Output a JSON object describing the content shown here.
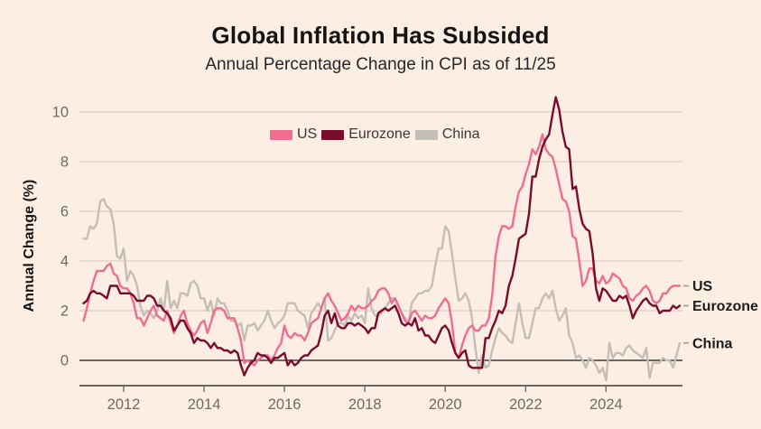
{
  "chart_data": {
    "type": "line",
    "title": "Global Inflation Has Subsided",
    "subtitle": "Annual Percentage Change in CPI as of 11/25",
    "ylabel": "Annual Change (%)",
    "x_start": "2011-01",
    "x_end": "2025-11",
    "frequency": "monthly",
    "xticks": [
      2012,
      2014,
      2016,
      2018,
      2020,
      2022,
      2024
    ],
    "yticks": [
      0,
      2,
      4,
      6,
      8,
      10
    ],
    "ylim": [
      -1.0,
      10.8
    ],
    "grid": "horizontal",
    "legend_position": "inside-top-center",
    "background_color": "#fdeee3",
    "gridline_color": "#cfc8c0",
    "zeroline_color": "#3e3a36",
    "axis_color": "#3e3a36",
    "tick_label_color": "#6f6a62",
    "end_label_color": "#1c1c1c",
    "series": [
      {
        "name": "US",
        "color": "#ee6d91",
        "end_label": "US",
        "values": [
          1.6,
          2.1,
          2.7,
          3.2,
          3.6,
          3.6,
          3.6,
          3.8,
          3.9,
          3.5,
          3.4,
          3.0,
          2.9,
          2.9,
          2.7,
          2.3,
          1.7,
          1.7,
          1.4,
          1.7,
          2.0,
          2.2,
          1.8,
          1.7,
          1.6,
          2.0,
          1.5,
          1.1,
          1.4,
          1.8,
          2.0,
          1.5,
          1.2,
          1.0,
          1.2,
          1.5,
          1.6,
          1.1,
          1.5,
          2.0,
          2.1,
          2.1,
          2.0,
          1.7,
          1.7,
          1.7,
          1.3,
          0.8,
          -0.1,
          0.0,
          -0.1,
          -0.2,
          0.0,
          0.1,
          0.2,
          0.2,
          0.0,
          0.2,
          0.5,
          0.7,
          1.4,
          1.0,
          0.9,
          1.1,
          1.0,
          1.0,
          0.8,
          1.1,
          1.5,
          1.6,
          1.7,
          2.1,
          2.5,
          2.7,
          2.4,
          2.2,
          1.9,
          1.6,
          1.7,
          1.9,
          2.2,
          2.0,
          2.2,
          2.1,
          2.1,
          2.2,
          2.4,
          2.5,
          2.8,
          2.9,
          2.9,
          2.7,
          2.3,
          2.5,
          2.2,
          1.9,
          1.6,
          1.5,
          1.9,
          2.0,
          1.8,
          1.6,
          1.8,
          1.7,
          1.7,
          1.8,
          2.1,
          2.3,
          2.5,
          2.3,
          1.5,
          0.3,
          0.1,
          0.6,
          1.0,
          1.3,
          1.4,
          1.2,
          1.2,
          1.4,
          1.4,
          1.7,
          2.6,
          4.2,
          5.0,
          5.4,
          5.4,
          5.3,
          5.4,
          6.2,
          6.8,
          7.0,
          7.5,
          7.9,
          8.5,
          8.3,
          8.6,
          9.1,
          8.5,
          8.3,
          8.2,
          7.7,
          7.1,
          6.5,
          6.4,
          6.0,
          5.0,
          4.9,
          4.0,
          3.0,
          3.2,
          3.7,
          3.7,
          3.2,
          3.1,
          3.4,
          3.1,
          3.2,
          3.5,
          3.4,
          3.3,
          3.0,
          2.9,
          2.5,
          2.4,
          2.6,
          2.7,
          2.9,
          3.0,
          2.8,
          2.4,
          2.3,
          2.4,
          2.7,
          2.7,
          2.9,
          3.0,
          3.0,
          3.0
        ]
      },
      {
        "name": "Eurozone",
        "color": "#790b2d",
        "end_label": "Eurozone",
        "values": [
          2.3,
          2.4,
          2.7,
          2.8,
          2.7,
          2.7,
          2.6,
          2.5,
          3.0,
          3.0,
          3.0,
          2.7,
          2.7,
          2.7,
          2.7,
          2.6,
          2.4,
          2.4,
          2.4,
          2.6,
          2.6,
          2.5,
          2.2,
          2.2,
          2.0,
          1.9,
          1.7,
          1.2,
          1.4,
          1.6,
          1.6,
          1.3,
          1.1,
          0.7,
          0.9,
          0.8,
          0.8,
          0.7,
          0.5,
          0.7,
          0.5,
          0.5,
          0.4,
          0.4,
          0.3,
          0.4,
          0.3,
          -0.2,
          -0.6,
          -0.3,
          -0.1,
          0.0,
          0.3,
          0.2,
          0.2,
          0.1,
          -0.1,
          0.1,
          0.1,
          0.2,
          0.3,
          -0.2,
          0.0,
          -0.2,
          -0.1,
          0.1,
          0.2,
          0.2,
          0.4,
          0.5,
          0.6,
          1.1,
          1.8,
          2.0,
          1.5,
          1.9,
          1.4,
          1.3,
          1.3,
          1.5,
          1.5,
          1.4,
          1.5,
          1.4,
          1.3,
          1.1,
          1.3,
          1.3,
          1.9,
          2.0,
          2.1,
          2.0,
          2.1,
          2.2,
          1.9,
          1.5,
          1.4,
          1.5,
          1.4,
          1.7,
          1.2,
          1.3,
          1.0,
          1.0,
          0.8,
          0.7,
          1.0,
          1.3,
          1.4,
          1.2,
          0.7,
          0.3,
          0.1,
          0.3,
          0.4,
          -0.2,
          -0.3,
          -0.3,
          -0.3,
          -0.3,
          0.9,
          0.9,
          1.3,
          1.6,
          2.0,
          1.9,
          2.2,
          3.0,
          3.4,
          4.1,
          4.9,
          5.0,
          5.1,
          5.9,
          7.4,
          7.4,
          8.1,
          8.6,
          8.9,
          9.1,
          9.9,
          10.6,
          10.1,
          9.2,
          8.6,
          8.5,
          6.9,
          7.0,
          6.1,
          5.5,
          5.3,
          5.2,
          4.3,
          2.9,
          2.4,
          2.9,
          2.8,
          2.6,
          2.4,
          2.4,
          2.6,
          2.5,
          2.6,
          2.2,
          1.7,
          2.0,
          2.2,
          2.4,
          2.5,
          2.3,
          2.2,
          2.2,
          1.9,
          2.0,
          2.0,
          2.0,
          2.2,
          2.1,
          2.2
        ]
      },
      {
        "name": "China",
        "color": "#c3beb6",
        "end_label": "China",
        "values": [
          4.9,
          4.9,
          5.4,
          5.3,
          5.5,
          6.4,
          6.5,
          6.2,
          6.1,
          5.5,
          4.2,
          4.1,
          4.5,
          3.2,
          3.6,
          3.4,
          3.0,
          2.2,
          1.8,
          2.0,
          1.9,
          1.7,
          2.0,
          2.5,
          2.0,
          3.2,
          2.1,
          2.4,
          2.1,
          2.7,
          2.7,
          2.6,
          3.1,
          3.2,
          3.0,
          2.5,
          2.5,
          2.0,
          2.4,
          1.8,
          2.5,
          2.3,
          2.3,
          2.0,
          1.6,
          1.6,
          1.4,
          1.5,
          0.8,
          1.4,
          1.4,
          1.5,
          1.2,
          1.4,
          1.6,
          2.0,
          1.6,
          1.3,
          1.5,
          1.6,
          1.8,
          2.3,
          2.3,
          2.3,
          2.0,
          1.9,
          1.8,
          1.3,
          1.9,
          2.1,
          2.3,
          2.1,
          2.5,
          0.8,
          0.9,
          1.2,
          1.5,
          1.5,
          1.4,
          1.8,
          1.6,
          1.9,
          1.7,
          1.8,
          1.5,
          2.9,
          2.1,
          1.8,
          1.8,
          1.9,
          2.1,
          2.3,
          2.5,
          2.5,
          2.2,
          1.9,
          1.7,
          1.5,
          2.3,
          2.5,
          2.7,
          2.7,
          2.8,
          2.8,
          3.0,
          3.8,
          4.5,
          4.5,
          5.4,
          5.2,
          4.3,
          3.3,
          2.4,
          2.5,
          2.7,
          2.4,
          1.7,
          0.5,
          -0.5,
          0.2,
          -0.3,
          -0.2,
          0.4,
          0.9,
          1.3,
          1.1,
          1.0,
          0.8,
          0.7,
          1.5,
          2.3,
          1.5,
          0.9,
          0.9,
          1.5,
          2.1,
          2.1,
          2.5,
          2.7,
          2.5,
          2.8,
          2.1,
          1.6,
          1.8,
          2.1,
          1.0,
          0.7,
          0.1,
          0.2,
          0.0,
          -0.3,
          0.1,
          0.0,
          -0.2,
          -0.5,
          -0.3,
          -0.8,
          0.7,
          0.1,
          0.3,
          0.3,
          0.2,
          0.5,
          0.6,
          0.4,
          0.3,
          0.2,
          0.1,
          0.5,
          -0.7,
          -0.1,
          -0.1,
          -0.1,
          0.1,
          0.0,
          0.0,
          -0.3,
          0.2,
          0.7
        ]
      }
    ]
  }
}
